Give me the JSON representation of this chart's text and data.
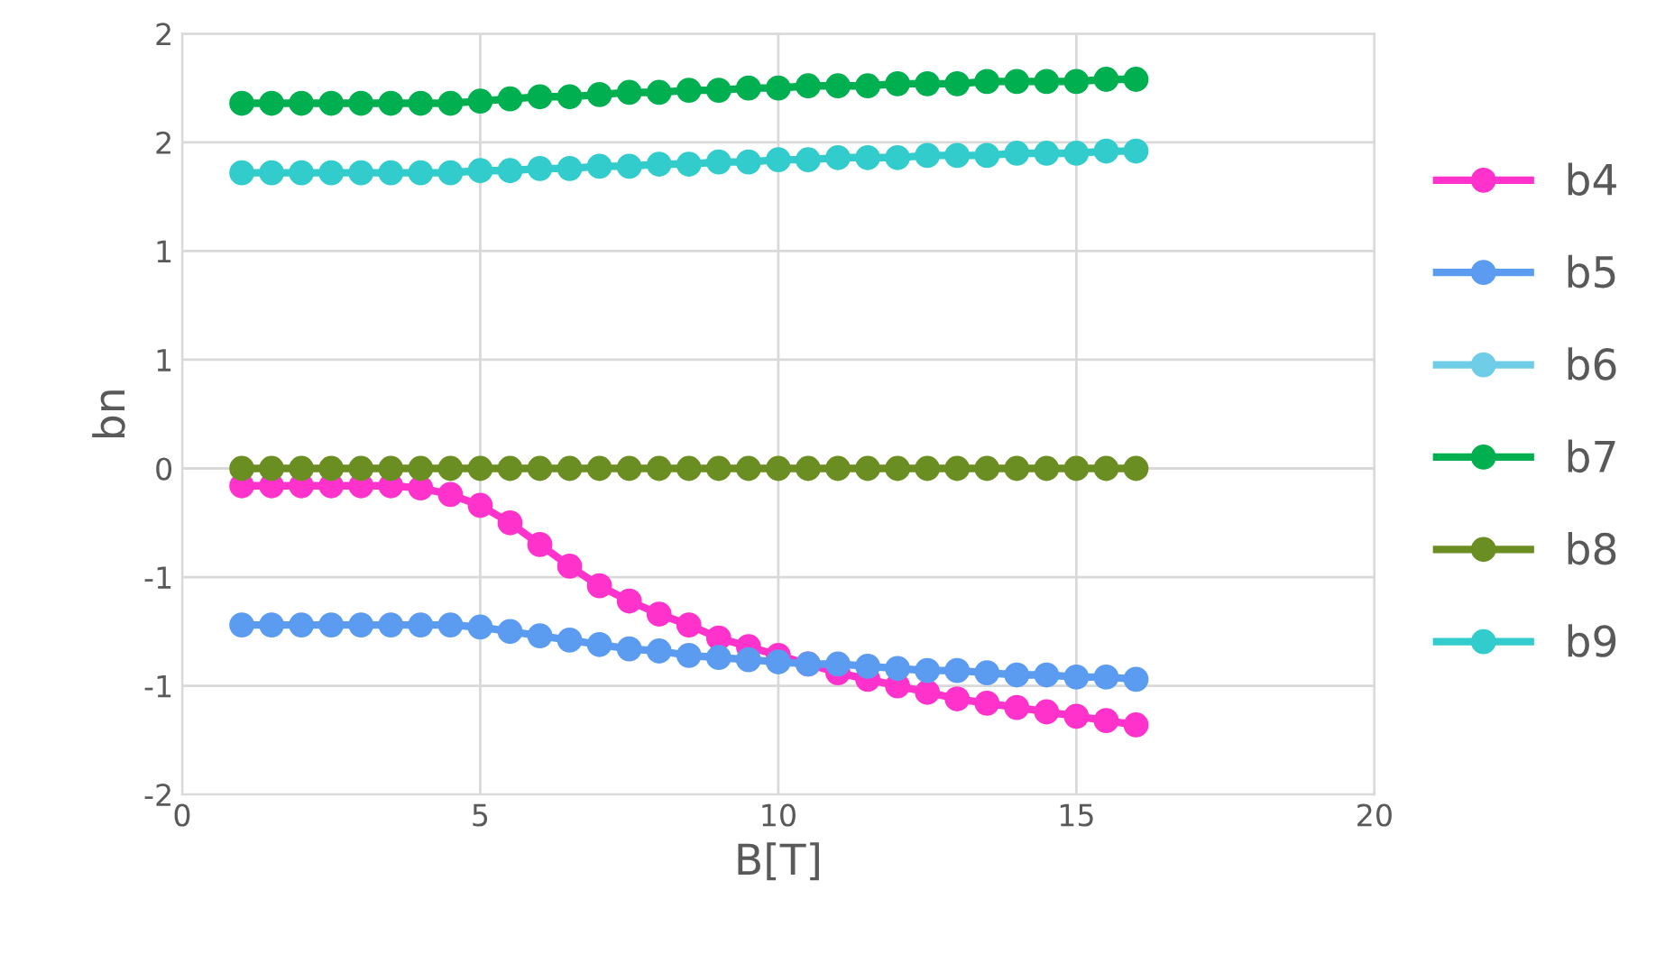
{
  "chart_data": {
    "type": "line",
    "xlabel": "B[T]",
    "ylabel": "bn",
    "xlim": [
      0,
      20
    ],
    "xticks": [
      0,
      5,
      10,
      15,
      20
    ],
    "ylim": [
      -1.5,
      2
    ],
    "yticks": [
      {
        "value": -1.5,
        "label": "-2"
      },
      {
        "value": -1,
        "label": "-1"
      },
      {
        "value": -0.5,
        "label": "-1"
      },
      {
        "value": 0,
        "label": "0"
      },
      {
        "value": 0.5,
        "label": "1"
      },
      {
        "value": 1,
        "label": "1"
      },
      {
        "value": 1.5,
        "label": "2"
      },
      {
        "value": 2,
        "label": "2"
      }
    ],
    "grid": true,
    "legend": "right",
    "marker": "circle",
    "line_style": "solid",
    "x": [
      1,
      1.5,
      2,
      2.5,
      3,
      3.5,
      4,
      4.5,
      5,
      5.5,
      6,
      6.5,
      7,
      7.5,
      8,
      8.5,
      9,
      9.5,
      10,
      10.5,
      11,
      11.5,
      12,
      12.5,
      13,
      13.5,
      14,
      14.5,
      15,
      15.5,
      16
    ],
    "series": [
      {
        "name": "b4",
        "color": "#ff33cc",
        "values": [
          -0.08,
          -0.08,
          -0.08,
          -0.08,
          -0.08,
          -0.08,
          -0.09,
          -0.12,
          -0.17,
          -0.25,
          -0.35,
          -0.45,
          -0.54,
          -0.61,
          -0.67,
          -0.72,
          -0.78,
          -0.82,
          -0.86,
          -0.9,
          -0.94,
          -0.97,
          -1.0,
          -1.03,
          -1.06,
          -1.08,
          -1.1,
          -1.12,
          -1.14,
          -1.16,
          -1.18
        ]
      },
      {
        "name": "b5",
        "color": "#5b9bf0",
        "values": [
          -0.72,
          -0.72,
          -0.72,
          -0.72,
          -0.72,
          -0.72,
          -0.72,
          -0.72,
          -0.73,
          -0.75,
          -0.77,
          -0.79,
          -0.81,
          -0.83,
          -0.84,
          -0.86,
          -0.87,
          -0.88,
          -0.89,
          -0.9,
          -0.9,
          -0.91,
          -0.92,
          -0.93,
          -0.93,
          -0.94,
          -0.95,
          -0.95,
          -0.96,
          -0.96,
          -0.97
        ]
      },
      {
        "name": "b6",
        "color": "#6fcde8",
        "values": [
          null,
          null,
          null,
          null,
          null,
          null,
          null,
          null,
          null,
          null,
          null,
          null,
          null,
          null,
          null,
          null,
          null,
          null,
          null,
          null,
          null,
          null,
          null,
          null,
          null,
          null,
          null,
          null,
          null,
          null,
          null
        ]
      },
      {
        "name": "b7",
        "color": "#00b050",
        "values": [
          1.68,
          1.68,
          1.68,
          1.68,
          1.68,
          1.68,
          1.68,
          1.68,
          1.69,
          1.7,
          1.71,
          1.71,
          1.72,
          1.73,
          1.73,
          1.74,
          1.74,
          1.75,
          1.75,
          1.76,
          1.76,
          1.76,
          1.77,
          1.77,
          1.77,
          1.78,
          1.78,
          1.78,
          1.78,
          1.79,
          1.79
        ]
      },
      {
        "name": "b8",
        "color": "#6b8e23",
        "values": [
          0,
          0,
          0,
          0,
          0,
          0,
          0,
          0,
          0,
          0,
          0,
          0,
          0,
          0,
          0,
          0,
          0,
          0,
          0,
          0,
          0,
          0,
          0,
          0,
          0,
          0,
          0,
          0,
          0,
          0,
          0
        ]
      },
      {
        "name": "b9",
        "color": "#33cccc",
        "values": [
          1.36,
          1.36,
          1.36,
          1.36,
          1.36,
          1.36,
          1.36,
          1.36,
          1.37,
          1.37,
          1.38,
          1.38,
          1.39,
          1.39,
          1.4,
          1.4,
          1.41,
          1.41,
          1.42,
          1.42,
          1.43,
          1.43,
          1.43,
          1.44,
          1.44,
          1.44,
          1.45,
          1.45,
          1.45,
          1.46,
          1.46
        ]
      }
    ]
  }
}
